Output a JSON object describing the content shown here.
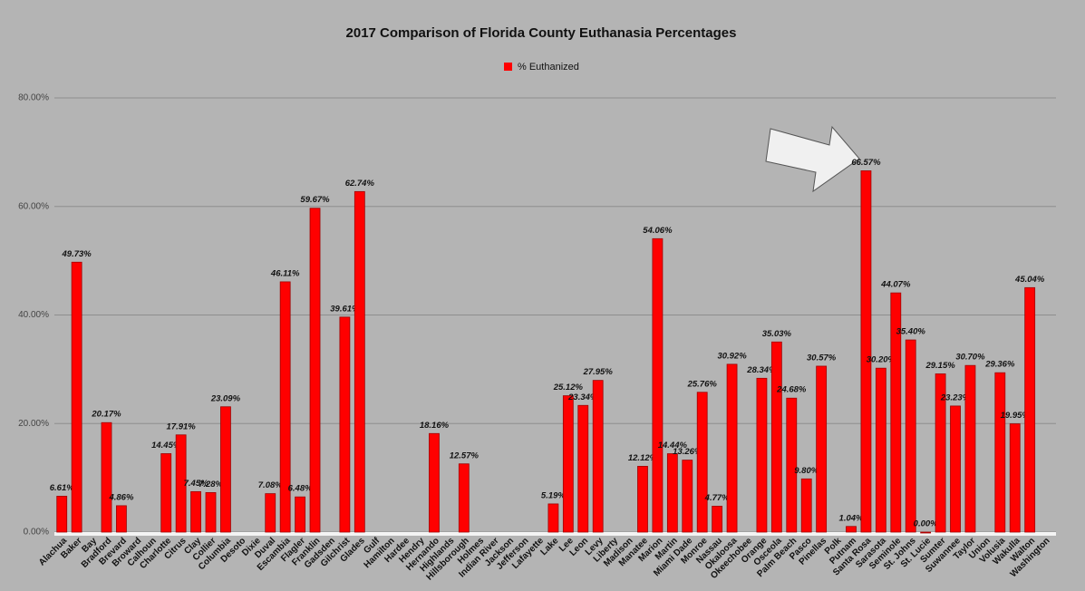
{
  "chart_data": {
    "type": "bar",
    "title": "2017 Comparison of Florida County Euthanasia Percentages",
    "categories": [
      "Alachua",
      "Baker",
      "Bay",
      "Bradford",
      "Brevard",
      "Broward",
      "Calhoun",
      "Charlotte",
      "Citrus",
      "Clay",
      "Collier",
      "Columbia",
      "Desoto",
      "Dixie",
      "Duval",
      "Escambia",
      "Flagler",
      "Franklin",
      "Gadsden",
      "Gilchrist",
      "Glades",
      "Gulf",
      "Hamilton",
      "Hardee",
      "Hendry",
      "Hernando",
      "Highlands",
      "Hillsborough",
      "Holmes",
      "Indian River",
      "Jackson",
      "Jefferson",
      "Lafayette",
      "Lake",
      "Lee",
      "Leon",
      "Levy",
      "Liberty",
      "Madison",
      "Manatee",
      "Marion",
      "Martin",
      "Miami Dade",
      "Monroe",
      "Nassau",
      "Okaloosa",
      "Okeechobee",
      "Orange",
      "Osceola",
      "Palm Beach",
      "Pasco",
      "Pinellas",
      "Polk",
      "Putnam",
      "Santa Rosa",
      "Sarasota",
      "Seminole",
      "St. Johns",
      "St. Lucie",
      "Sumter",
      "Suwannee",
      "Taylor",
      "Union",
      "Volusia",
      "Wakulla",
      "Walton",
      "Washington"
    ],
    "series": [
      {
        "name": "% Euthanized",
        "color": "#ff0000",
        "values": [
          6.61,
          49.73,
          null,
          20.17,
          4.86,
          null,
          null,
          14.45,
          17.91,
          7.45,
          7.28,
          23.09,
          null,
          null,
          7.08,
          46.11,
          6.48,
          59.67,
          null,
          39.61,
          62.74,
          null,
          null,
          null,
          null,
          18.16,
          null,
          12.57,
          null,
          null,
          null,
          null,
          null,
          5.19,
          25.12,
          23.34,
          27.95,
          null,
          null,
          12.12,
          54.06,
          14.44,
          13.26,
          25.76,
          4.77,
          30.92,
          null,
          28.34,
          35.03,
          24.68,
          9.8,
          30.57,
          null,
          1.04,
          66.57,
          30.2,
          44.07,
          35.4,
          0.0,
          29.15,
          23.23,
          30.7,
          null,
          29.36,
          19.95,
          45.04,
          null
        ],
        "value_labels": [
          "6.61%",
          "49.73%",
          null,
          "20.17%",
          "4.86%",
          null,
          null,
          "14.45%",
          "17.91%",
          "7.45%",
          "7.28%",
          "23.09%",
          null,
          null,
          "7.08%",
          "46.11%",
          "6.48%",
          "59.67%",
          null,
          "39.61%",
          "62.74%",
          null,
          null,
          null,
          null,
          "18.16%",
          null,
          "12.57%",
          null,
          null,
          null,
          null,
          null,
          "5.19%",
          "25.12%",
          "23.34%",
          "27.95%",
          null,
          null,
          "12.12%",
          "54.06%",
          "14.44%",
          "13.26%",
          "25.76%",
          "4.77%",
          "30.92%",
          null,
          "28.34%",
          "35.03%",
          "24.68%",
          "9.80%",
          "30.57%",
          null,
          "1.04%",
          "66.57%",
          "30.20%",
          "44.07%",
          "35.40%",
          "0.00%",
          "29.15%",
          "23.23%",
          "30.70%",
          null,
          "29.36%",
          "19.95%",
          "45.04%",
          null
        ]
      }
    ],
    "ylim": [
      0,
      80
    ],
    "yticks": [
      {
        "value": 0,
        "label": "0.00%"
      },
      {
        "value": 20,
        "label": "20.00%"
      },
      {
        "value": 40,
        "label": "40.00%"
      },
      {
        "value": 60,
        "label": "60.00%"
      },
      {
        "value": 80,
        "label": "80.00%"
      }
    ],
    "grid": true,
    "legend": "top"
  }
}
